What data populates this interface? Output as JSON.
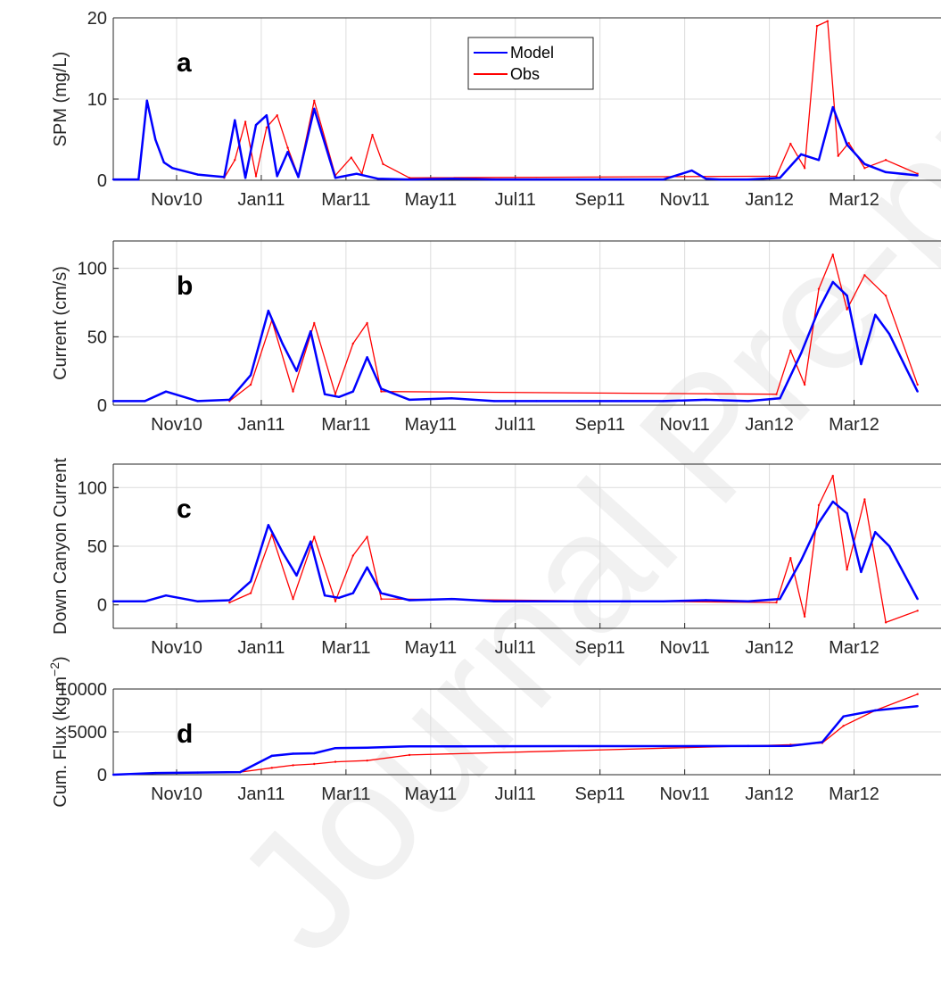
{
  "watermark_text": "Journal Pre-proof",
  "colors": {
    "model": "#0000ff",
    "obs": "#ff0000",
    "grid": "#dcdcdc",
    "axis": "#262626"
  },
  "x_months": [
    "2010-09",
    "2010-10",
    "2010-11",
    "2010-12",
    "2011-01",
    "2011-02",
    "2011-03",
    "2011-04",
    "2011-05",
    "2011-06",
    "2011-07",
    "2011-08",
    "2011-09",
    "2011-10",
    "2011-11",
    "2011-12",
    "2012-01",
    "2012-02",
    "2012-03",
    "2012-04"
  ],
  "x_tick_labels": [
    "Nov10",
    "Jan11",
    "Mar11",
    "May11",
    "Jul11",
    "Sep11",
    "Nov11",
    "Jan12",
    "Mar12"
  ],
  "chart_data": [
    {
      "type": "line",
      "panel_label": "a",
      "ylabel": "SPM (mg/L)",
      "ylim": [
        0,
        20
      ],
      "yticks": [
        0,
        10,
        20
      ],
      "grid": true,
      "legend": {
        "placement": "top-center",
        "entries": [
          "Model",
          "Obs"
        ]
      },
      "series": [
        {
          "name": "Model",
          "x": [
            "2010-09",
            "2010-10",
            "2010-10",
            "2010-10",
            "2010-10",
            "2010-10",
            "2010-11",
            "2010-12",
            "2010-12",
            "2010-12",
            "2010-12",
            "2011-01",
            "2011-01",
            "2011-01",
            "2011-01",
            "2011-02",
            "2011-02",
            "2011-03",
            "2011-03",
            "2011-04",
            "2011-05",
            "2011-06",
            "2011-07",
            "2011-08",
            "2011-09",
            "2011-10",
            "2011-11",
            "2011-11",
            "2011-11",
            "2011-12",
            "2012-01",
            "2012-01",
            "2012-02",
            "2012-02",
            "2012-02",
            "2012-03",
            "2012-03",
            "2012-04"
          ],
          "values": [
            0.1,
            0.1,
            9.8,
            5.0,
            2.2,
            1.5,
            0.7,
            0.4,
            7.4,
            0.3,
            6.8,
            8.0,
            0.5,
            3.5,
            0.4,
            8.8,
            0.3,
            0.8,
            0.2,
            0.1,
            0.2,
            0.1,
            0.1,
            0.1,
            0.1,
            0.1,
            1.2,
            0.2,
            0.1,
            0.1,
            0.3,
            3.2,
            2.5,
            9.0,
            4.4,
            2.0,
            1.0,
            0.6
          ]
        },
        {
          "name": "Obs",
          "x": [
            "2010-12",
            "2010-12",
            "2010-12",
            "2010-12",
            "2011-01",
            "2011-01",
            "2011-01",
            "2011-01",
            "2011-02",
            "2011-02",
            "2011-03",
            "2011-03",
            "2011-03",
            "2011-03",
            "2011-04",
            "2012-01",
            "2012-01",
            "2012-01",
            "2012-02",
            "2012-02",
            "2012-02",
            "2012-02",
            "2012-03",
            "2012-03",
            "2012-04"
          ],
          "values": [
            0.3,
            2.5,
            7.2,
            0.5,
            6.5,
            8.0,
            4.0,
            0.5,
            9.8,
            0.6,
            2.8,
            0.8,
            5.6,
            2.0,
            0.3,
            0.5,
            4.5,
            1.5,
            19.0,
            19.6,
            3.0,
            4.6,
            1.5,
            2.5,
            0.8
          ]
        }
      ]
    },
    {
      "type": "line",
      "panel_label": "b",
      "ylabel": "Current (cm/s)",
      "ylim": [
        0,
        120
      ],
      "yticks": [
        0,
        50,
        100
      ],
      "grid": true,
      "series": [
        {
          "name": "Model",
          "x": [
            "2010-09",
            "2010-10",
            "2010-10",
            "2010-11",
            "2010-12",
            "2010-12",
            "2011-01",
            "2011-01",
            "2011-01",
            "2011-02",
            "2011-02",
            "2011-02",
            "2011-03",
            "2011-03",
            "2011-03",
            "2011-04",
            "2011-05",
            "2011-06",
            "2011-07",
            "2011-08",
            "2011-09",
            "2011-10",
            "2011-11",
            "2011-12",
            "2012-01",
            "2012-01",
            "2012-02",
            "2012-02",
            "2012-02",
            "2012-03",
            "2012-03",
            "2012-03",
            "2012-04"
          ],
          "values": [
            3,
            3,
            10,
            3,
            4,
            22,
            69,
            45,
            25,
            54,
            8,
            6,
            10,
            35,
            12,
            4,
            5,
            3,
            3,
            3,
            3,
            3,
            4,
            3,
            5,
            38,
            70,
            90,
            80,
            30,
            66,
            52,
            10
          ]
        },
        {
          "name": "Obs",
          "x": [
            "2010-12",
            "2010-12",
            "2011-01",
            "2011-01",
            "2011-02",
            "2011-02",
            "2011-03",
            "2011-03",
            "2011-03",
            "2012-01",
            "2012-01",
            "2012-01",
            "2012-02",
            "2012-02",
            "2012-02",
            "2012-03",
            "2012-03",
            "2012-04"
          ],
          "values": [
            3,
            15,
            62,
            10,
            60,
            8,
            45,
            60,
            10,
            8,
            40,
            15,
            85,
            110,
            70,
            95,
            80,
            15
          ]
        }
      ]
    },
    {
      "type": "line",
      "panel_label": "c",
      "ylabel": "Down Canyon Current",
      "ylim": [
        -20,
        120
      ],
      "yticks": [
        0,
        50,
        100
      ],
      "grid": true,
      "series": [
        {
          "name": "Model",
          "x": [
            "2010-09",
            "2010-10",
            "2010-10",
            "2010-11",
            "2010-12",
            "2010-12",
            "2011-01",
            "2011-01",
            "2011-01",
            "2011-02",
            "2011-02",
            "2011-02",
            "2011-03",
            "2011-03",
            "2011-03",
            "2011-04",
            "2011-05",
            "2011-06",
            "2011-07",
            "2011-08",
            "2011-09",
            "2011-10",
            "2011-11",
            "2011-12",
            "2012-01",
            "2012-01",
            "2012-02",
            "2012-02",
            "2012-02",
            "2012-03",
            "2012-03",
            "2012-03",
            "2012-04"
          ],
          "values": [
            3,
            3,
            8,
            3,
            4,
            20,
            68,
            45,
            25,
            54,
            8,
            6,
            10,
            32,
            10,
            4,
            5,
            3,
            3,
            3,
            3,
            3,
            4,
            3,
            5,
            38,
            70,
            88,
            78,
            28,
            62,
            50,
            5
          ]
        },
        {
          "name": "Obs",
          "x": [
            "2010-12",
            "2010-12",
            "2011-01",
            "2011-01",
            "2011-02",
            "2011-02",
            "2011-03",
            "2011-03",
            "2011-03",
            "2012-01",
            "2012-01",
            "2012-01",
            "2012-02",
            "2012-02",
            "2012-02",
            "2012-03",
            "2012-03",
            "2012-04"
          ],
          "values": [
            2,
            10,
            60,
            5,
            58,
            3,
            42,
            58,
            5,
            2,
            40,
            -10,
            85,
            110,
            30,
            90,
            -15,
            -5
          ]
        }
      ]
    },
    {
      "type": "line",
      "panel_label": "d",
      "ylabel": "Cum. Flux (kg m",
      "ylabel_sup": "−2",
      "ylabel_end": ")",
      "ylim": [
        0,
        10000
      ],
      "yticks": [
        0,
        5000,
        10000
      ],
      "grid": true,
      "series": [
        {
          "name": "Model",
          "x": [
            "2010-09",
            "2010-10",
            "2010-11",
            "2010-12",
            "2011-01",
            "2011-01",
            "2011-02",
            "2011-02",
            "2011-03",
            "2011-04",
            "2011-06",
            "2011-08",
            "2011-10",
            "2011-12",
            "2012-01",
            "2012-02",
            "2012-02",
            "2012-03",
            "2012-04"
          ],
          "values": [
            0,
            200,
            250,
            300,
            2200,
            2450,
            2500,
            3100,
            3150,
            3300,
            3320,
            3330,
            3330,
            3340,
            3360,
            3800,
            6800,
            7500,
            8000
          ]
        },
        {
          "name": "Obs",
          "x": [
            "2010-12",
            "2011-01",
            "2011-01",
            "2011-02",
            "2011-02",
            "2011-03",
            "2011-04",
            "2011-12",
            "2012-01",
            "2012-02",
            "2012-02",
            "2012-03",
            "2012-04"
          ],
          "values": [
            300,
            800,
            1100,
            1250,
            1500,
            1650,
            2300,
            3350,
            3500,
            3700,
            5700,
            7500,
            9400
          ]
        }
      ]
    }
  ]
}
